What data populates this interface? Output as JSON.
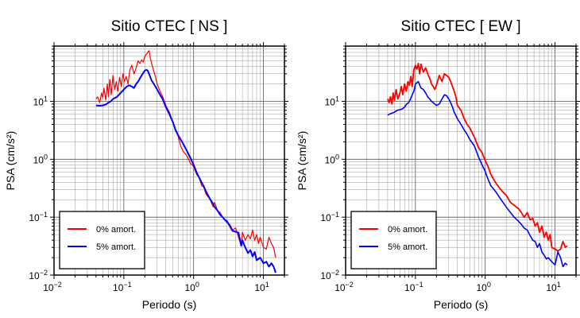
{
  "chart_data": [
    {
      "type": "line",
      "title": "Sitio CTEC [ NS ]",
      "xlabel": "Periodo (s)",
      "ylabel": "PSA (cm/s²)",
      "xscale": "log",
      "yscale": "log",
      "xlim": [
        0.01,
        20
      ],
      "ylim": [
        0.01,
        90
      ],
      "grid": true,
      "legend_position": "bottom-left",
      "x_ticks": [
        {
          "value": 0.01,
          "base": "10",
          "exp": "−2"
        },
        {
          "value": 0.1,
          "base": "10",
          "exp": "−1"
        },
        {
          "value": 1,
          "base": "10",
          "exp": "0"
        },
        {
          "value": 10,
          "base": "10",
          "exp": "1"
        }
      ],
      "y_ticks": [
        {
          "value": 0.01,
          "base": "10",
          "exp": "−2"
        },
        {
          "value": 0.1,
          "base": "10",
          "exp": "−1"
        },
        {
          "value": 1,
          "base": "10",
          "exp": "0"
        },
        {
          "value": 10,
          "base": "10",
          "exp": "1"
        }
      ],
      "series": [
        {
          "name": "0% amort.",
          "color": "#ff0000",
          "width": 1.2,
          "x": [
            0.04,
            0.042,
            0.045,
            0.048,
            0.05,
            0.052,
            0.055,
            0.058,
            0.06,
            0.063,
            0.066,
            0.07,
            0.074,
            0.078,
            0.082,
            0.087,
            0.092,
            0.097,
            0.102,
            0.108,
            0.115,
            0.122,
            0.13,
            0.14,
            0.15,
            0.16,
            0.17,
            0.18,
            0.19,
            0.2,
            0.21,
            0.22,
            0.23,
            0.24,
            0.26,
            0.28,
            0.3,
            0.33,
            0.36,
            0.4,
            0.45,
            0.5,
            0.55,
            0.6,
            0.65,
            0.7,
            0.8,
            0.9,
            1.0,
            1.1,
            1.2,
            1.3,
            1.4,
            1.5,
            1.7,
            1.9,
            2.0,
            2.2,
            2.4,
            2.6,
            2.8,
            3.0,
            3.3,
            3.6,
            4.0,
            4.4,
            4.8,
            5.0,
            5.5,
            6.0,
            6.5,
            7.0,
            7.5,
            8.0,
            8.5,
            9.0,
            10.0,
            11.0,
            12.0,
            13.0,
            14.0,
            15.0
          ],
          "y": [
            11,
            12,
            9.5,
            14,
            11.5,
            17,
            10.5,
            20,
            12,
            24,
            13,
            28,
            16,
            22,
            15,
            26,
            18,
            30,
            22,
            27,
            20,
            35,
            42,
            30,
            38,
            50,
            45,
            52,
            48,
            60,
            65,
            70,
            75,
            55,
            38,
            28,
            20,
            15,
            12,
            8.5,
            6.5,
            4.5,
            3.2,
            2.5,
            1.7,
            1.4,
            1.15,
            0.85,
            0.75,
            0.55,
            0.48,
            0.35,
            0.33,
            0.25,
            0.21,
            0.15,
            0.18,
            0.13,
            0.12,
            0.1,
            0.09,
            0.08,
            0.075,
            0.06,
            0.065,
            0.045,
            0.032,
            0.055,
            0.04,
            0.05,
            0.042,
            0.06,
            0.04,
            0.05,
            0.035,
            0.045,
            0.03,
            0.028,
            0.045,
            0.035,
            0.03,
            0.02
          ]
        },
        {
          "name": "5% amort.",
          "color": "#0000ff",
          "width": 2.0,
          "x": [
            0.04,
            0.045,
            0.05,
            0.055,
            0.06,
            0.065,
            0.07,
            0.075,
            0.08,
            0.085,
            0.09,
            0.1,
            0.11,
            0.12,
            0.13,
            0.14,
            0.15,
            0.16,
            0.17,
            0.18,
            0.19,
            0.2,
            0.21,
            0.22,
            0.23,
            0.24,
            0.25,
            0.27,
            0.3,
            0.33,
            0.36,
            0.4,
            0.45,
            0.5,
            0.55,
            0.6,
            0.7,
            0.8,
            0.9,
            1.0,
            1.1,
            1.2,
            1.3,
            1.4,
            1.5,
            1.7,
            1.9,
            2.0,
            2.2,
            2.4,
            2.6,
            2.8,
            3.0,
            3.3,
            3.6,
            4.0,
            4.4,
            4.8,
            5.0,
            5.5,
            6.0,
            6.5,
            7.0,
            7.5,
            8.0,
            9.0,
            10.0,
            11.0,
            12.0,
            13.0,
            14.0,
            15.0
          ],
          "y": [
            8.5,
            8.4,
            8.5,
            8.8,
            9.5,
            10,
            11,
            11.5,
            12,
            13,
            14,
            16,
            18,
            19,
            18,
            17,
            20,
            22,
            25,
            28,
            31,
            34,
            35,
            34,
            30,
            26,
            23,
            20,
            16,
            13,
            11,
            8,
            6.0,
            4.5,
            3.2,
            2.6,
            1.9,
            1.4,
            1.05,
            0.8,
            0.6,
            0.48,
            0.4,
            0.34,
            0.28,
            0.21,
            0.17,
            0.15,
            0.13,
            0.11,
            0.1,
            0.09,
            0.085,
            0.07,
            0.058,
            0.056,
            0.054,
            0.032,
            0.04,
            0.03,
            0.024,
            0.027,
            0.021,
            0.025,
            0.018,
            0.02,
            0.016,
            0.017,
            0.014,
            0.016,
            0.014,
            0.011
          ]
        }
      ]
    },
    {
      "type": "line",
      "title": "Sitio CTEC [ EW ]",
      "xlabel": "Periodo (s)",
      "ylabel": "PSA (cm/s²)",
      "xscale": "log",
      "yscale": "log",
      "xlim": [
        0.01,
        20
      ],
      "ylim": [
        0.01,
        90
      ],
      "grid": true,
      "legend_position": "bottom-left",
      "x_ticks": [
        {
          "value": 0.01,
          "base": "10",
          "exp": "−2"
        },
        {
          "value": 0.1,
          "base": "10",
          "exp": "−1"
        },
        {
          "value": 1,
          "base": "10",
          "exp": "0"
        },
        {
          "value": 10,
          "base": "10",
          "exp": "1"
        }
      ],
      "y_ticks": [
        {
          "value": 0.01,
          "base": "10",
          "exp": "−2"
        },
        {
          "value": 0.1,
          "base": "10",
          "exp": "−1"
        },
        {
          "value": 1,
          "base": "10",
          "exp": "0"
        },
        {
          "value": 10,
          "base": "10",
          "exp": "1"
        }
      ],
      "series": [
        {
          "name": "0% amort.",
          "color": "#ff0000",
          "width": 1.8,
          "x": [
            0.04,
            0.042,
            0.044,
            0.046,
            0.048,
            0.05,
            0.053,
            0.056,
            0.06,
            0.063,
            0.066,
            0.07,
            0.074,
            0.078,
            0.082,
            0.086,
            0.09,
            0.095,
            0.1,
            0.105,
            0.11,
            0.115,
            0.12,
            0.13,
            0.14,
            0.15,
            0.16,
            0.17,
            0.18,
            0.19,
            0.2,
            0.22,
            0.24,
            0.26,
            0.28,
            0.3,
            0.32,
            0.34,
            0.36,
            0.38,
            0.4,
            0.45,
            0.5,
            0.55,
            0.6,
            0.7,
            0.8,
            0.9,
            1.0,
            1.1,
            1.2,
            1.4,
            1.6,
            1.8,
            2.0,
            2.3,
            2.6,
            3.0,
            3.3,
            3.6,
            4.0,
            4.4,
            4.8,
            5.2,
            5.6,
            6.0,
            6.5,
            7.0,
            7.5,
            8.0,
            8.5,
            9.0,
            10.0,
            11.0,
            12.0,
            13.0,
            14.0,
            15.0
          ],
          "y": [
            11,
            9.5,
            12,
            9,
            14,
            10.5,
            16,
            11,
            14,
            18,
            13,
            20,
            15,
            22,
            19,
            27,
            18,
            35,
            42,
            36,
            45,
            30,
            44,
            32,
            38,
            30,
            25,
            20,
            18,
            16,
            19,
            28,
            22,
            30,
            28,
            26,
            22,
            18,
            15,
            12,
            8.5,
            7,
            5,
            4,
            3.5,
            2.4,
            1.6,
            1.3,
            0.95,
            0.75,
            0.55,
            0.4,
            0.32,
            0.27,
            0.24,
            0.18,
            0.16,
            0.14,
            0.12,
            0.1,
            0.12,
            0.09,
            0.095,
            0.07,
            0.08,
            0.055,
            0.07,
            0.045,
            0.055,
            0.04,
            0.05,
            0.03,
            0.028,
            0.026,
            0.028,
            0.038,
            0.03,
            0.032
          ]
        },
        {
          "name": "5% amort.",
          "color": "#0000ff",
          "width": 1.6,
          "x": [
            0.04,
            0.045,
            0.05,
            0.055,
            0.06,
            0.065,
            0.07,
            0.075,
            0.08,
            0.085,
            0.09,
            0.095,
            0.1,
            0.11,
            0.12,
            0.13,
            0.14,
            0.15,
            0.16,
            0.17,
            0.18,
            0.19,
            0.2,
            0.22,
            0.24,
            0.26,
            0.28,
            0.3,
            0.32,
            0.34,
            0.36,
            0.4,
            0.45,
            0.5,
            0.55,
            0.6,
            0.7,
            0.8,
            0.9,
            1.0,
            1.1,
            1.2,
            1.4,
            1.6,
            1.8,
            2.0,
            2.3,
            2.6,
            3.0,
            3.3,
            3.6,
            4.0,
            4.4,
            4.8,
            5.2,
            5.6,
            6.0,
            6.5,
            7.0,
            7.5,
            8.0,
            9.0,
            10.0,
            11.0,
            12.0,
            13.0,
            14.0,
            15.0
          ],
          "y": [
            5.8,
            6.2,
            6.5,
            7,
            7.2,
            7.4,
            8,
            9,
            9.5,
            11,
            13,
            15,
            20,
            22,
            17,
            16,
            14,
            12,
            11,
            10,
            9.5,
            9,
            8.5,
            9,
            11,
            13,
            12.5,
            11,
            9.5,
            8,
            6.5,
            5,
            4,
            3.2,
            2.7,
            2.2,
            1.7,
            1.1,
            0.8,
            0.62,
            0.45,
            0.35,
            0.28,
            0.22,
            0.18,
            0.15,
            0.12,
            0.1,
            0.085,
            0.075,
            0.065,
            0.06,
            0.048,
            0.04,
            0.038,
            0.03,
            0.035,
            0.025,
            0.022,
            0.019,
            0.02,
            0.017,
            0.015,
            0.025,
            0.02,
            0.014,
            0.016,
            0.015
          ]
        }
      ]
    }
  ]
}
